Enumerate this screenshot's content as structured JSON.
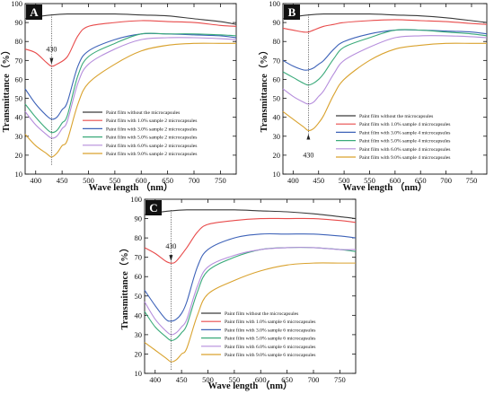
{
  "colors": {
    "series": [
      "#3a3a3a",
      "#e84b4b",
      "#3d62b8",
      "#3aaa7a",
      "#b58ddc",
      "#d9a22e"
    ],
    "panel_label_bg": "#111111"
  },
  "chart_data": [
    {
      "type": "line",
      "panel": "A",
      "xlabel": "Wave length （nm）",
      "ylabel": "Transmittance（%）",
      "xlim": [
        380,
        780
      ],
      "ylim": [
        10,
        100
      ],
      "xticks": [
        400,
        450,
        500,
        550,
        600,
        650,
        700,
        750
      ],
      "yticks": [
        10,
        20,
        30,
        40,
        50,
        60,
        70,
        80,
        90,
        100
      ],
      "legend_position": "lower-center",
      "annotation": {
        "text": "430",
        "x": 430
      },
      "series": [
        {
          "name": "Paint film without the microcapsules",
          "x": [
            380,
            400,
            430,
            460,
            500,
            550,
            600,
            650,
            700,
            750,
            780
          ],
          "y": [
            92,
            93,
            94,
            94.5,
            94.5,
            94.5,
            94,
            93.5,
            92,
            90.5,
            89
          ]
        },
        {
          "name": "Paint film with 1.0% sample 2 microcapsules",
          "x": [
            380,
            400,
            420,
            430,
            440,
            460,
            480,
            500,
            550,
            600,
            650,
            700,
            750,
            780
          ],
          "y": [
            76,
            74,
            69,
            67,
            68,
            72,
            83,
            88,
            90,
            91,
            90.5,
            90,
            88.5,
            88
          ]
        },
        {
          "name": "Paint film with 3.0% sample 2 microcapsules",
          "x": [
            380,
            400,
            420,
            430,
            440,
            450,
            460,
            480,
            500,
            550,
            600,
            650,
            700,
            750,
            780
          ],
          "y": [
            55,
            47,
            41,
            39,
            40,
            44,
            48,
            67,
            75,
            81,
            84,
            84,
            83.5,
            83,
            82
          ]
        },
        {
          "name": "Paint film with 5.0% sample 2 microcapsules",
          "x": [
            380,
            400,
            420,
            430,
            440,
            450,
            460,
            480,
            500,
            550,
            600,
            650,
            700,
            750,
            780
          ],
          "y": [
            47,
            40,
            34,
            32,
            33,
            37,
            41,
            62,
            72,
            79,
            84,
            84,
            84,
            83.5,
            83
          ]
        },
        {
          "name": "Paint film with 6.0% sample 2 microcapsules",
          "x": [
            380,
            400,
            420,
            430,
            440,
            450,
            460,
            480,
            500,
            550,
            600,
            650,
            700,
            750,
            780
          ],
          "y": [
            43,
            36,
            31,
            29,
            30,
            34,
            38,
            58,
            68,
            76,
            81,
            82,
            82,
            81.5,
            81
          ]
        },
        {
          "name": "Paint film with 9.0% sample 2 microcapsules",
          "x": [
            380,
            400,
            420,
            430,
            440,
            450,
            460,
            480,
            500,
            550,
            600,
            650,
            700,
            750,
            780
          ],
          "y": [
            31,
            25,
            21,
            19,
            21,
            25,
            28,
            47,
            58,
            68,
            75,
            78,
            79,
            79,
            79
          ]
        }
      ]
    },
    {
      "type": "line",
      "panel": "B",
      "xlabel": "Wave length （nm）",
      "ylabel": "Transmittance（%）",
      "xlim": [
        380,
        780
      ],
      "ylim": [
        10,
        100
      ],
      "xticks": [
        400,
        450,
        500,
        550,
        600,
        650,
        700,
        750
      ],
      "yticks": [
        10,
        20,
        30,
        40,
        50,
        60,
        70,
        80,
        90,
        100
      ],
      "legend_position": "lower-center",
      "annotation": {
        "text": "430",
        "x": 430
      },
      "series": [
        {
          "name": "Paint film without the microcapsules",
          "x": [
            380,
            400,
            430,
            460,
            500,
            550,
            600,
            650,
            700,
            750,
            780
          ],
          "y": [
            92,
            93,
            94,
            94.5,
            94.5,
            94.5,
            94,
            93.5,
            92.5,
            91,
            90
          ]
        },
        {
          "name": "Paint film with 1.0% sample 4 microcapsules",
          "x": [
            380,
            400,
            420,
            430,
            440,
            460,
            480,
            500,
            550,
            600,
            650,
            700,
            750,
            780
          ],
          "y": [
            87,
            86,
            85,
            85,
            86,
            88,
            89,
            90,
            91,
            91.5,
            91,
            90.5,
            89.5,
            89
          ]
        },
        {
          "name": "Paint film with 3.0% sample 4 microcapsules",
          "x": [
            380,
            400,
            420,
            430,
            440,
            450,
            460,
            480,
            500,
            550,
            600,
            650,
            700,
            750,
            780
          ],
          "y": [
            70,
            67,
            65,
            65,
            66,
            68,
            70,
            76,
            80,
            84,
            86,
            86,
            85.5,
            85,
            84
          ]
        },
        {
          "name": "Paint film with 5.0% sample 4 microcapsules",
          "x": [
            380,
            400,
            420,
            430,
            440,
            450,
            460,
            480,
            500,
            550,
            600,
            650,
            700,
            750,
            780
          ],
          "y": [
            64,
            61,
            58,
            57,
            58,
            60,
            63,
            71,
            77,
            82,
            86,
            86,
            85,
            84,
            83
          ]
        },
        {
          "name": "Paint film with 6.0% sample 4 microcapsules",
          "x": [
            380,
            400,
            420,
            430,
            440,
            450,
            460,
            480,
            500,
            550,
            600,
            650,
            700,
            750,
            780
          ],
          "y": [
            55,
            51,
            48,
            47,
            48,
            51,
            54,
            63,
            70,
            77,
            82,
            83,
            83,
            82.5,
            82
          ]
        },
        {
          "name": "Paint film with 9.0% sample 4 microcapsules",
          "x": [
            380,
            400,
            420,
            430,
            440,
            450,
            460,
            480,
            500,
            550,
            600,
            650,
            700,
            750,
            780
          ],
          "y": [
            43,
            39,
            35,
            33,
            34,
            37,
            41,
            52,
            60,
            70,
            76,
            78,
            79,
            79,
            79
          ]
        }
      ]
    },
    {
      "type": "line",
      "panel": "C",
      "xlabel": "Wave length （nm）",
      "ylabel": "Transmittance（%）",
      "xlim": [
        380,
        780
      ],
      "ylim": [
        10,
        100
      ],
      "xticks": [
        400,
        450,
        500,
        550,
        600,
        650,
        700,
        750
      ],
      "yticks": [
        10,
        20,
        30,
        40,
        50,
        60,
        70,
        80,
        90,
        100
      ],
      "legend_position": "lower-center",
      "annotation": {
        "text": "430",
        "x": 430
      },
      "series": [
        {
          "name": "Paint film without the microcapsules",
          "x": [
            380,
            400,
            430,
            460,
            500,
            550,
            600,
            650,
            700,
            750,
            780
          ],
          "y": [
            92,
            93,
            94,
            94.5,
            94.5,
            94.5,
            94,
            93.5,
            92.5,
            91,
            90
          ]
        },
        {
          "name": "Paint film with 1.0% sample 6 microcapsules",
          "x": [
            380,
            400,
            420,
            430,
            440,
            460,
            480,
            500,
            550,
            600,
            650,
            700,
            750,
            780
          ],
          "y": [
            75,
            72,
            68,
            67,
            68,
            75,
            83,
            87,
            89,
            90,
            90,
            90,
            89,
            88
          ]
        },
        {
          "name": "Paint film with 3.0% sample 6 microcapsules",
          "x": [
            380,
            400,
            420,
            430,
            440,
            450,
            460,
            480,
            500,
            550,
            600,
            650,
            700,
            750,
            780
          ],
          "y": [
            53,
            45,
            38,
            37,
            38,
            41,
            47,
            65,
            74,
            80,
            82,
            82,
            82,
            81,
            80
          ]
        },
        {
          "name": "Paint film with 5.0% sample 6 microcapsules",
          "x": [
            380,
            400,
            420,
            430,
            440,
            450,
            460,
            480,
            500,
            550,
            600,
            650,
            700,
            750,
            780
          ],
          "y": [
            42,
            34,
            29,
            27,
            28,
            31,
            35,
            52,
            63,
            70,
            74,
            75,
            75,
            74,
            73
          ]
        },
        {
          "name": "Paint film with 6.0% sample 6 microcapsules",
          "x": [
            380,
            400,
            420,
            430,
            440,
            450,
            460,
            480,
            500,
            550,
            600,
            650,
            700,
            750,
            780
          ],
          "y": [
            47,
            38,
            32,
            30,
            31,
            34,
            38,
            55,
            65,
            71,
            74,
            75,
            75,
            74,
            74
          ]
        },
        {
          "name": "Paint film with 9.0% sample 6 microcapsules",
          "x": [
            380,
            400,
            420,
            430,
            440,
            450,
            460,
            480,
            500,
            550,
            600,
            650,
            700,
            750,
            780
          ],
          "y": [
            26,
            22,
            18,
            16,
            17,
            20,
            23,
            40,
            51,
            58,
            63,
            66,
            67,
            67,
            67
          ]
        }
      ]
    }
  ]
}
